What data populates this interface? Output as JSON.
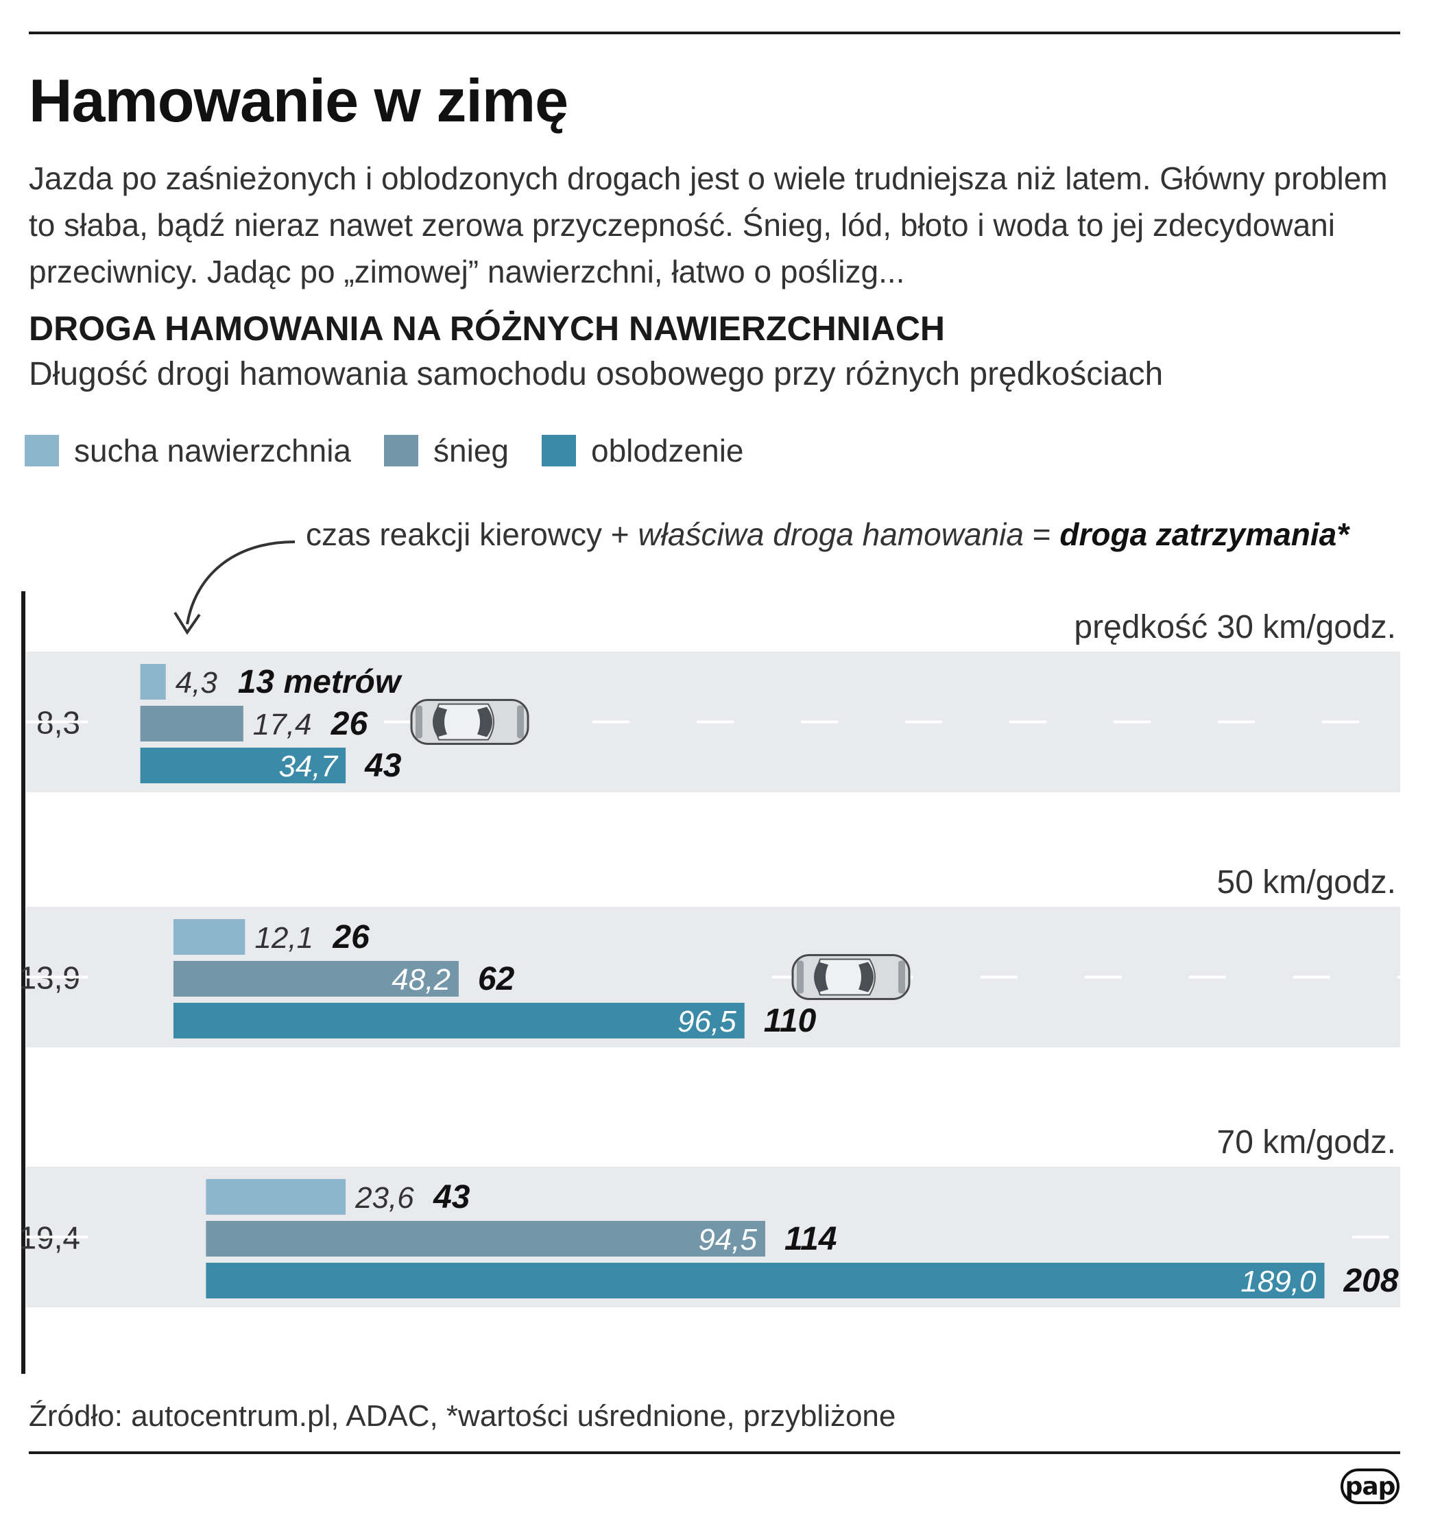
{
  "header": {
    "title": "Hamowanie w zimę",
    "lead": "Jazda po zaśnieżonych i oblodzonych drogach jest o wiele trudniejsza niż latem. Główny problem to słaba, bądź nieraz nawet zerowa przyczepność. Śnieg, lód, błoto i woda to jej zdecydowani przeciwnicy. Jadąc po „zimowej” nawierzchni, łatwo o poślizg..."
  },
  "section": {
    "title": "DROGA HAMOWANIA NA RÓŻNYCH NAWIERZCHNIACH",
    "subtitle": "Długość drogi hamowania samochodu osobowego przy różnych prędkościach"
  },
  "legend": [
    {
      "label": "sucha nawierzchnia",
      "color": "#8db5cb"
    },
    {
      "label": "śnieg",
      "color": "#7396a9"
    },
    {
      "label": "oblodzenie",
      "color": "#3a8aa8"
    }
  ],
  "formula": {
    "part1": "czas reakcji kierowcy + ",
    "part2": "właściwa droga hamowania",
    "part3": " = ",
    "part4": "droga zatrzymania*"
  },
  "chart_data": {
    "type": "bar",
    "orientation": "horizontal",
    "stacked_offset": "reaction distance precedes braking bars",
    "first_unit_label": "metrów",
    "series_names": [
      "sucha nawierzchnia",
      "śnieg",
      "oblodzenie"
    ],
    "groups": [
      {
        "speed_label": "prędkość 30 km/godz.",
        "reaction_distance": "8,3",
        "reaction_value": 8.3,
        "bars": [
          {
            "series": "sucha nawierzchnia",
            "braking": 4.3,
            "braking_label": "4,3",
            "total": "13"
          },
          {
            "series": "śnieg",
            "braking": 17.4,
            "braking_label": "17,4",
            "total": "26"
          },
          {
            "series": "oblodzenie",
            "braking": 34.7,
            "braking_label": "34,7",
            "total": "43"
          }
        ]
      },
      {
        "speed_label": "50 km/godz.",
        "reaction_distance": "13,9",
        "reaction_value": 13.9,
        "bars": [
          {
            "series": "sucha nawierzchnia",
            "braking": 12.1,
            "braking_label": "12,1",
            "total": "26"
          },
          {
            "series": "śnieg",
            "braking": 48.2,
            "braking_label": "48,2",
            "total": "62"
          },
          {
            "series": "oblodzenie",
            "braking": 96.5,
            "braking_label": "96,5",
            "total": "110"
          }
        ]
      },
      {
        "speed_label": "70 km/godz.",
        "reaction_distance": "19,4",
        "reaction_value": 19.4,
        "bars": [
          {
            "series": "sucha nawierzchnia",
            "braking": 23.6,
            "braking_label": "23,6",
            "total": "43"
          },
          {
            "series": "śnieg",
            "braking": 94.5,
            "braking_label": "94,5",
            "total": "114"
          },
          {
            "series": "oblodzenie",
            "braking": 189.0,
            "braking_label": "189,0",
            "total": "208"
          }
        ]
      }
    ]
  },
  "footer": {
    "source": "Źródło: autocentrum.pl, ADAC, *wartości uśrednione, przybliżone",
    "logo": "pap"
  },
  "icons": [
    "car-icon",
    "curved-arrow-icon"
  ]
}
